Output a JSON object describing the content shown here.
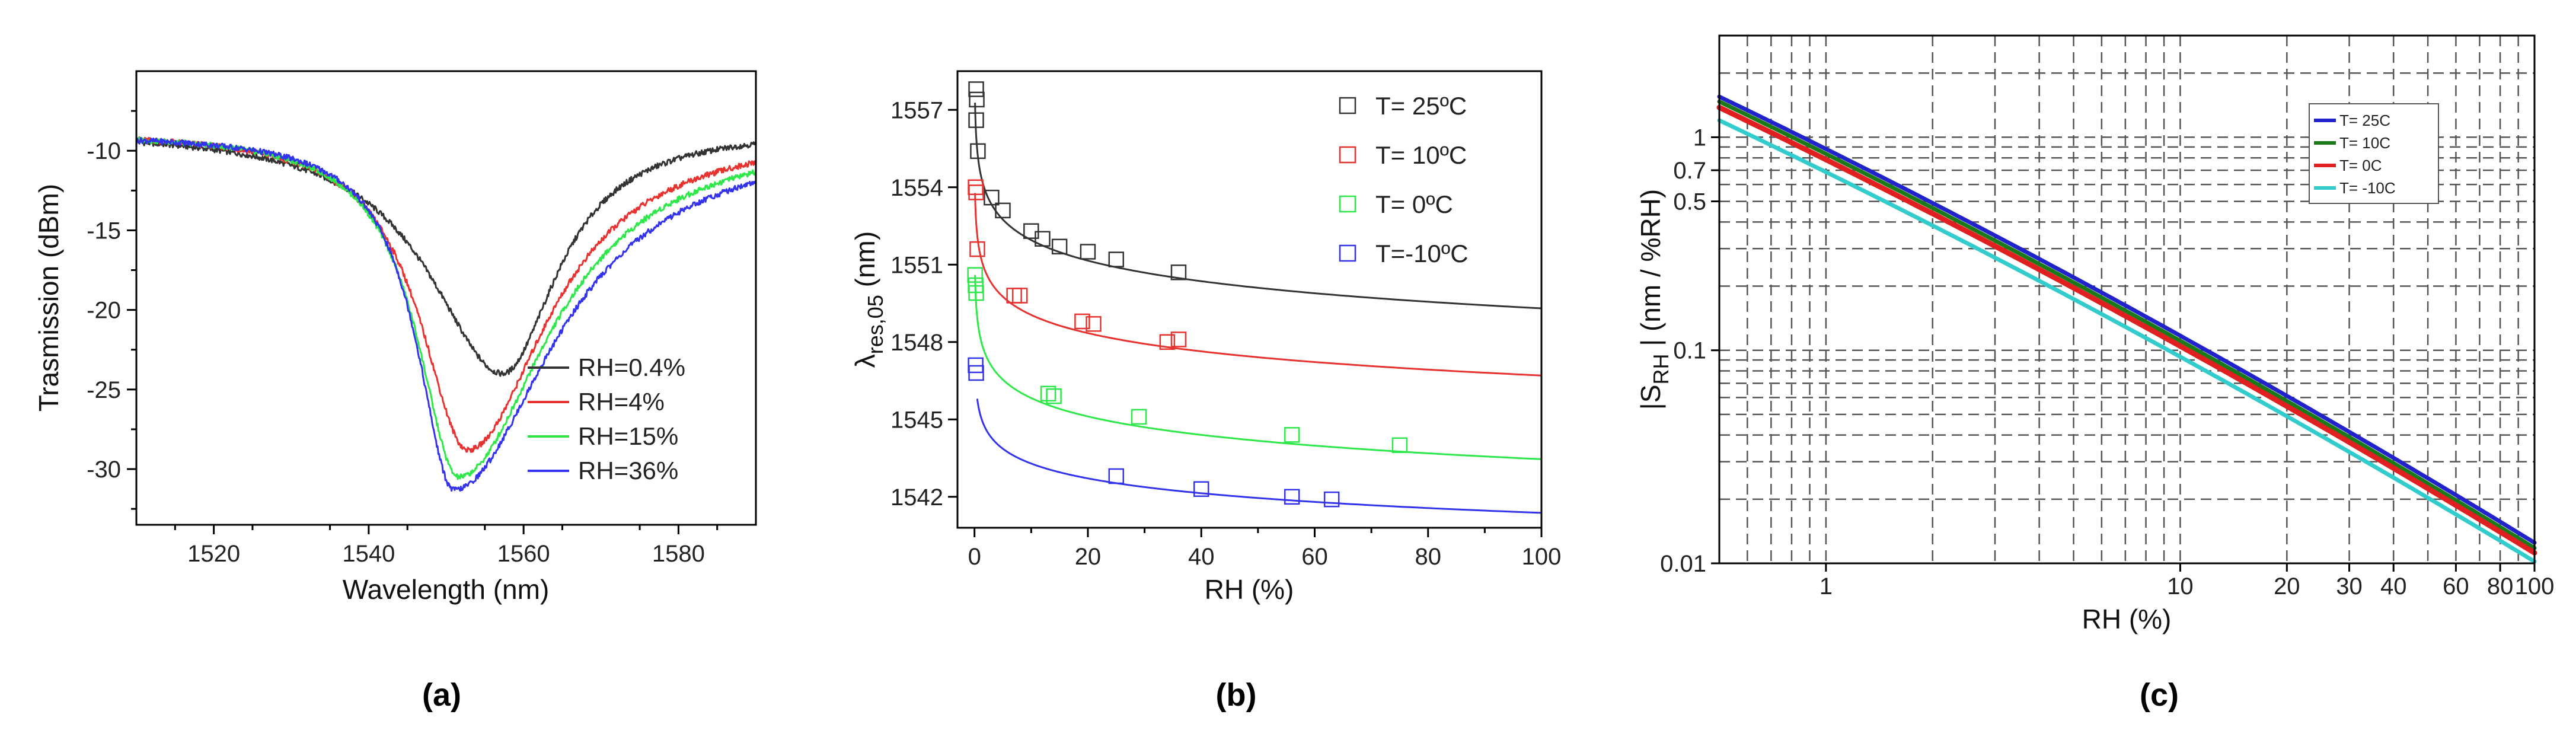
{
  "figure": {
    "panel_labels": [
      "(a)",
      "(b)",
      "(c)"
    ]
  },
  "chart_data": [
    {
      "id": "a",
      "type": "line",
      "title": "",
      "xlabel": "Wavelength (nm)",
      "ylabel": "Trasmission (dBm)",
      "xlim": [
        1510,
        1590
      ],
      "ylim": [
        -33.5,
        -5
      ],
      "xticks": [
        1520,
        1540,
        1560,
        1580
      ],
      "yticks": [
        -10,
        -15,
        -20,
        -25,
        -30
      ],
      "legend_position": "bottom-right",
      "series": [
        {
          "name": "RH=0.4%",
          "color": "#333333",
          "dip_center": 1557.3,
          "dip_min": -24.0,
          "width_left": 11.5,
          "width_right": 8.5,
          "baseline": -8.6
        },
        {
          "name": "RH=4%",
          "color": "#e8322f",
          "dip_center": 1552.8,
          "dip_min": -28.8,
          "width_left": 7.5,
          "width_right": 12.5,
          "baseline": -8.7
        },
        {
          "name": "RH=15%",
          "color": "#2ee84a",
          "dip_center": 1551.6,
          "dip_min": -30.5,
          "width_left": 6.5,
          "width_right": 14.0,
          "baseline": -8.8
        },
        {
          "name": "RH=36%",
          "color": "#3333ee",
          "dip_center": 1551.0,
          "dip_min": -31.3,
          "width_left": 5.8,
          "width_right": 15.5,
          "baseline": -8.9
        }
      ]
    },
    {
      "id": "b",
      "type": "scatter",
      "title": "",
      "xlabel": "RH (%)",
      "ylabel": "λres,05 (nm)",
      "ylabel_main": "λ",
      "ylabel_sub": "res,05",
      "ylabel_suffix": " (nm)",
      "xlim": [
        -3,
        100
      ],
      "ylim": [
        1540.8,
        1558.5
      ],
      "xticks": [
        0,
        20,
        40,
        60,
        80,
        100
      ],
      "yticks": [
        1542,
        1545,
        1548,
        1551,
        1554,
        1557
      ],
      "legend_position": "top-right",
      "series": [
        {
          "name": "T= 25ºC",
          "color": "#333333",
          "points": [
            [
              0.3,
              1557.8
            ],
            [
              0.4,
              1557.4
            ],
            [
              0.3,
              1556.6
            ],
            [
              0.6,
              1555.4
            ],
            [
              3,
              1553.6
            ],
            [
              5,
              1553.1
            ],
            [
              10,
              1552.3
            ],
            [
              12,
              1552.0
            ],
            [
              15,
              1551.7
            ],
            [
              20,
              1551.5
            ],
            [
              25,
              1551.2
            ],
            [
              36,
              1550.7
            ]
          ],
          "fit": {
            "a": 1554.6,
            "b": -1.15,
            "min_x": 0.1
          }
        },
        {
          "name": "T= 10ºC",
          "color": "#e8322f",
          "points": [
            [
              0.2,
              1554.0
            ],
            [
              0.3,
              1553.8
            ],
            [
              0.5,
              1551.6
            ],
            [
              7,
              1549.8
            ],
            [
              8,
              1549.8
            ],
            [
              19,
              1548.8
            ],
            [
              21,
              1548.7
            ],
            [
              34,
              1548.0
            ],
            [
              36,
              1548.1
            ]
          ],
          "fit": {
            "a": 1551.4,
            "b": -1.02,
            "min_x": 0.1
          }
        },
        {
          "name": "T= 0ºC",
          "color": "#2ee84a",
          "points": [
            [
              0.1,
              1550.6
            ],
            [
              0.2,
              1550.2
            ],
            [
              0.3,
              1549.9
            ],
            [
              13,
              1546.0
            ],
            [
              14,
              1545.9
            ],
            [
              29,
              1545.1
            ],
            [
              56,
              1544.4
            ],
            [
              75,
              1544.0
            ]
          ],
          "fit": {
            "a": 1548.2,
            "b": -1.03,
            "min_x": 0.1
          }
        },
        {
          "name": "T=-10ºC",
          "color": "#3333ee",
          "points": [
            [
              0.2,
              1547.1
            ],
            [
              0.3,
              1546.8
            ],
            [
              25,
              1542.8
            ],
            [
              40,
              1542.3
            ],
            [
              56,
              1542.0
            ],
            [
              63,
              1541.9
            ]
          ],
          "fit": {
            "a": 1545.2,
            "b": -0.83,
            "min_x": 0.5
          }
        }
      ]
    },
    {
      "id": "c",
      "type": "line",
      "scale": "log-log",
      "title": "",
      "xlabel": "RH (%)",
      "ylabel": "|SRH| (nm / %RH)",
      "ylabel_pre": "|S",
      "ylabel_sub": "RH",
      "ylabel_suffix": " | (nm / %RH)",
      "xlim": [
        0.5,
        100
      ],
      "ylim": [
        0.01,
        3
      ],
      "grid": true,
      "xticks": [
        1,
        10,
        20,
        30,
        40,
        60,
        80,
        100
      ],
      "xtick_labels": [
        "1",
        "10",
        "20",
        "30",
        "40",
        "60",
        "80",
        "100"
      ],
      "yticks": [
        0.01,
        0.1,
        0.5,
        0.7,
        1
      ],
      "ytick_labels": [
        "0.01",
        "0.1",
        "0.5",
        "0.7",
        "1"
      ],
      "legend_position": "top-right",
      "series": [
        {
          "name": "T= 25C",
          "color": "#2222cc",
          "x_start": 0.5,
          "y_start": 1.55,
          "x_end": 100,
          "y_end": 0.0125
        },
        {
          "name": "T= 10C",
          "color": "#1a7a1a",
          "x_start": 0.5,
          "y_start": 1.47,
          "x_end": 100,
          "y_end": 0.0118
        },
        {
          "name": "T= 0C",
          "color": "#e02020",
          "x_start": 0.5,
          "y_start": 1.38,
          "x_end": 100,
          "y_end": 0.0112
        },
        {
          "name": "T= -10C",
          "color": "#33cccc",
          "x_start": 0.5,
          "y_start": 1.2,
          "x_end": 100,
          "y_end": 0.0102
        }
      ]
    }
  ]
}
